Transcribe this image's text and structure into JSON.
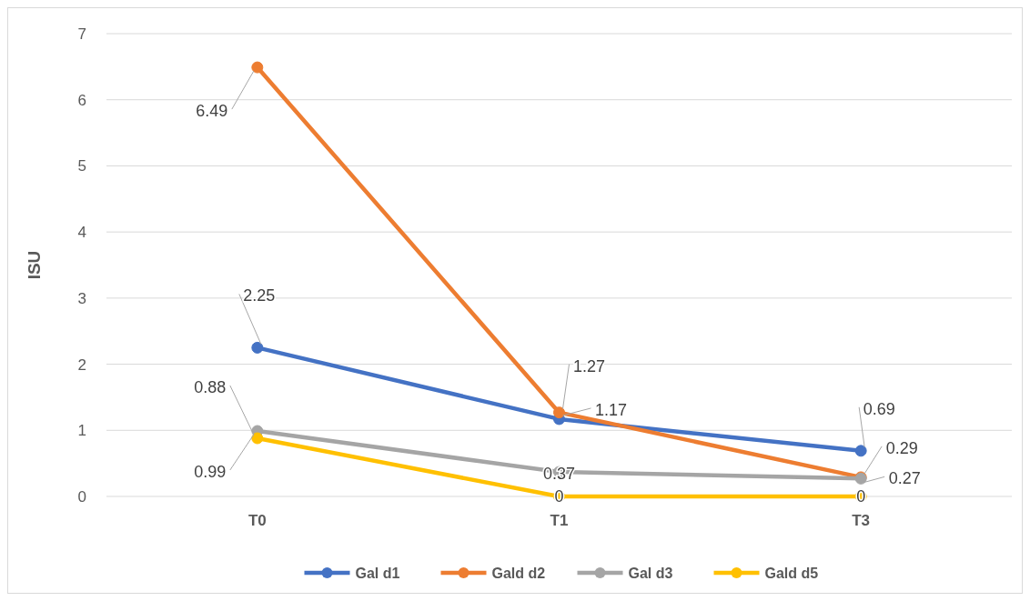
{
  "chart_data": {
    "type": "line",
    "ylabel": "ISU",
    "categories": [
      "T0",
      "T1",
      "T3"
    ],
    "series": [
      {
        "name": "Gal d1",
        "color": "#4472c4",
        "values": [
          2.25,
          1.17,
          0.69
        ]
      },
      {
        "name": "Gald d2",
        "color": "#ed7d31",
        "values": [
          6.49,
          1.27,
          0.29
        ]
      },
      {
        "name": "Gal d3",
        "color": "#a5a5a5",
        "values": [
          0.99,
          0.37,
          0.27
        ]
      },
      {
        "name": "Gald d5",
        "color": "#ffc000",
        "values": [
          0.88,
          0,
          0
        ]
      }
    ],
    "ylim": [
      0,
      7
    ],
    "yticks": [
      0,
      1,
      2,
      3,
      4,
      5,
      6,
      7
    ],
    "grid": "y",
    "legend": "bottom",
    "marker": "circle",
    "data_labels": true
  }
}
